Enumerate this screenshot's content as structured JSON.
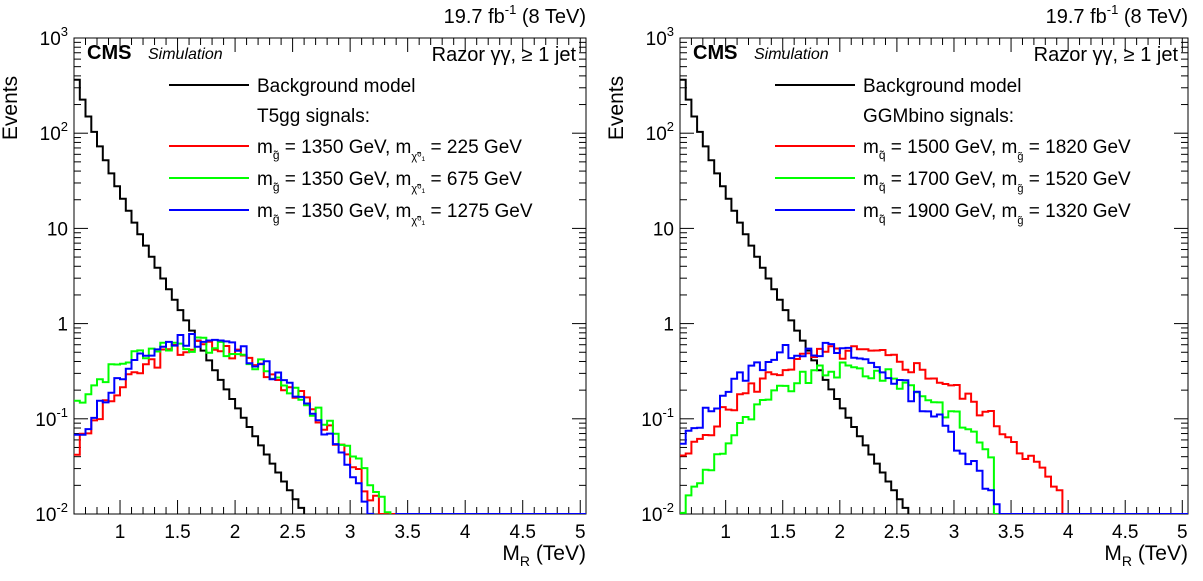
{
  "chart_data": [
    {
      "type": "line",
      "lumi": "19.7 fb",
      "lumi_exp": "-1",
      "energy": "(8 TeV)",
      "cms_label": "CMS",
      "sim_label": "Simulation",
      "selection": "Razor γγ, ≥ 1 jet",
      "xlabel": "M",
      "xlabel_sub": "R",
      "xlabel_unit": "(TeV)",
      "ylabel": "Events",
      "log_y": true,
      "xlim": [
        0.6,
        5.05
      ],
      "ylim": [
        0.01,
        1000
      ],
      "x_ticks": [
        "1",
        "1.5",
        "2",
        "2.5",
        "3",
        "3.5",
        "4",
        "4.5",
        "5"
      ],
      "y_ticks": [
        {
          "base": "10",
          "exp": "-2"
        },
        {
          "base": "10",
          "exp": "-1"
        },
        {
          "base": "1",
          "exp": ""
        },
        {
          "base": "10",
          "exp": ""
        },
        {
          "base": "10",
          "exp": "2"
        },
        {
          "base": "10",
          "exp": "3"
        }
      ],
      "legend_position": "top-right",
      "legend_header": "T5gg signals:",
      "background": {
        "name": "Background model",
        "color": "#000000",
        "peak": 520,
        "slope": 6.3,
        "cutoff": 3.5
      },
      "series": [
        {
          "name_main": "m",
          "name_sub": "g̃",
          "name_mid": " = 1350 GeV, m",
          "name_sub2": "χ̃⁰₁",
          "name_end": " =   225 GeV",
          "color": "#ff0000",
          "mean": 1.7,
          "sigma": 0.48,
          "amp": 0.58,
          "cutoff": 3.25,
          "noise_seed": 3
        },
        {
          "name_main": "m",
          "name_sub": "g̃",
          "name_mid": " = 1350 GeV, m",
          "name_sub2": "χ̃⁰₁",
          "name_end": " =   675 GeV",
          "color": "#00ff00",
          "mean": 1.55,
          "sigma": 0.55,
          "amp": 0.62,
          "cutoff": 3.7,
          "noise_seed": 7
        },
        {
          "name_main": "m",
          "name_sub": "g̃",
          "name_mid": " = 1350 GeV, m",
          "name_sub2": "χ̃⁰₁",
          "name_end": " = 1275 GeV",
          "color": "#0000ff",
          "mean": 1.65,
          "sigma": 0.46,
          "amp": 0.7,
          "cutoff": 3.4,
          "noise_seed": 11
        }
      ]
    },
    {
      "type": "line",
      "lumi": "19.7 fb",
      "lumi_exp": "-1",
      "energy": "(8 TeV)",
      "cms_label": "CMS",
      "sim_label": "Simulation",
      "selection": "Razor γγ, ≥ 1 jet",
      "xlabel": "M",
      "xlabel_sub": "R",
      "xlabel_unit": "(TeV)",
      "ylabel": "Events",
      "log_y": true,
      "xlim": [
        0.6,
        5.05
      ],
      "ylim": [
        0.01,
        1000
      ],
      "x_ticks": [
        "1",
        "1.5",
        "2",
        "2.5",
        "3",
        "3.5",
        "4",
        "4.5",
        "5"
      ],
      "y_ticks": [
        {
          "base": "10",
          "exp": "-2"
        },
        {
          "base": "10",
          "exp": "-1"
        },
        {
          "base": "1",
          "exp": ""
        },
        {
          "base": "10",
          "exp": ""
        },
        {
          "base": "10",
          "exp": "2"
        },
        {
          "base": "10",
          "exp": "3"
        }
      ],
      "legend_position": "top-right",
      "legend_header": "GGMbino signals:",
      "background": {
        "name": "Background model",
        "color": "#000000",
        "peak": 520,
        "slope": 6.3,
        "cutoff": 3.5
      },
      "series": [
        {
          "name_main": "m",
          "name_sub": "q̃",
          "name_mid": " = 1500 GeV, m",
          "name_sub2": "g̃",
          "name_end": " = 1820 GeV",
          "color": "#ff0000",
          "mean": 2.05,
          "sigma": 0.62,
          "amp": 0.5,
          "cutoff": 3.95,
          "noise_seed": 5
        },
        {
          "name_main": "m",
          "name_sub": "q̃",
          "name_mid": " = 1700 GeV, m",
          "name_sub2": "g̃",
          "name_end": " = 1520 GeV",
          "color": "#00ff00",
          "mean": 2.05,
          "sigma": 0.55,
          "amp": 0.33,
          "cutoff": 3.35,
          "noise_seed": 9
        },
        {
          "name_main": "m",
          "name_sub": "q̃",
          "name_mid": " = 1900 GeV, m",
          "name_sub2": "g̃",
          "name_end": " = 1320 GeV",
          "color": "#0000ff",
          "mean": 1.75,
          "sigma": 0.52,
          "amp": 0.55,
          "cutoff": 3.4,
          "noise_seed": 13
        }
      ]
    }
  ]
}
